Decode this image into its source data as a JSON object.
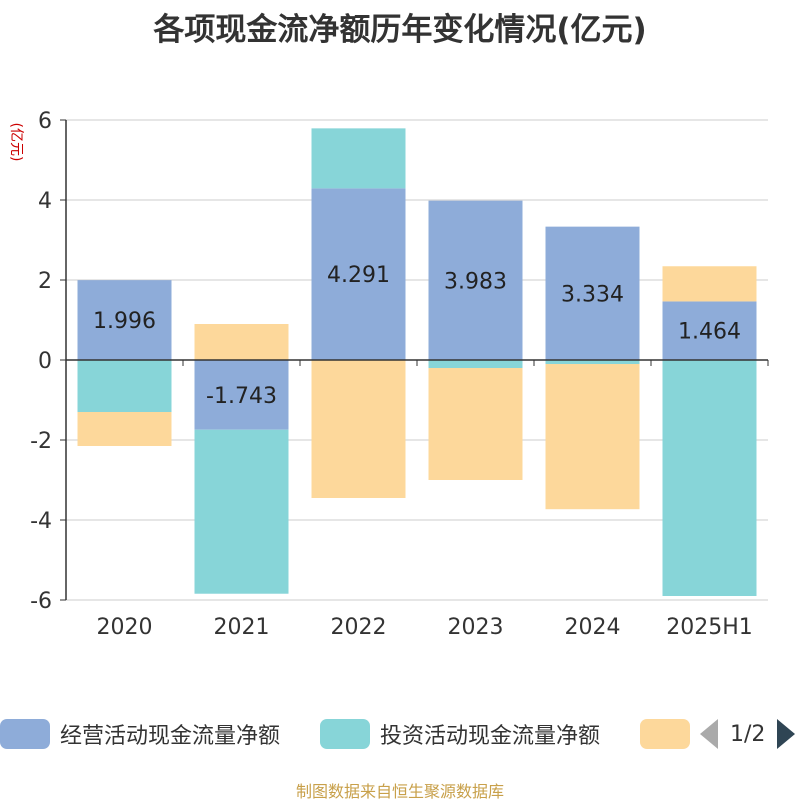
{
  "title": "各项现金流净额历年变化情况(亿元)",
  "source": "制图数据来自恒生聚源数据库",
  "legend_page": "1/2",
  "chart_data": {
    "type": "bar",
    "stacked": true,
    "title": "各项现金流净额历年变化情况(亿元)",
    "ylabel": "(亿元)",
    "ylim": [
      -6,
      6
    ],
    "yticks": [
      "6",
      "4",
      "2",
      "0",
      "-2",
      "-4",
      "-6"
    ],
    "categories": [
      "2020",
      "2021",
      "2022",
      "2023",
      "2024",
      "2025H1"
    ],
    "grid": true,
    "legend_position": "bottom",
    "series": [
      {
        "name": "经营活动现金流量净额",
        "color": "#8eacd9",
        "values": [
          1.996,
          -1.743,
          4.291,
          3.983,
          3.334,
          1.464
        ],
        "labels": [
          "1.996",
          "-1.743",
          "4.291",
          "3.983",
          "3.334",
          "1.464"
        ]
      },
      {
        "name": "投资活动现金流量净额",
        "color": "#87d5d8",
        "values": [
          -1.3,
          -4.1,
          1.5,
          -0.2,
          -0.1,
          -5.9
        ]
      },
      {
        "name": "",
        "color": "#fdd89b",
        "values": [
          -0.85,
          0.9,
          -3.45,
          -2.8,
          -3.63,
          0.88
        ]
      }
    ]
  }
}
